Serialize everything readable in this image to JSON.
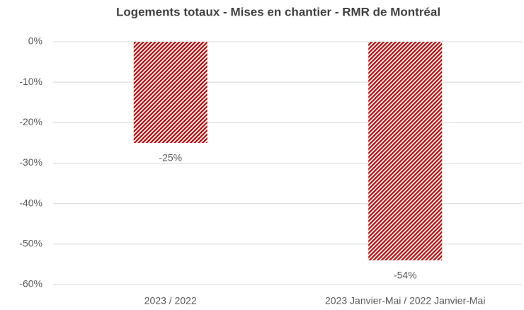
{
  "chart_data": {
    "type": "bar",
    "title": "Logements totaux - Mises en chantier - RMR de Montréal",
    "categories": [
      "2023 / 2022",
      "2023 Janvier-Mai / 2022 Janvier-Mai"
    ],
    "values": [
      -25,
      -54
    ],
    "value_labels": [
      "-25%",
      "-54%"
    ],
    "color": "#c00000",
    "ylim": [
      -60,
      0
    ],
    "yticks": [
      {
        "value": 0,
        "label": "0%"
      },
      {
        "value": -10,
        "label": "-10%"
      },
      {
        "value": -20,
        "label": "-20%"
      },
      {
        "value": -30,
        "label": "-30%"
      },
      {
        "value": -40,
        "label": "-40%"
      },
      {
        "value": -50,
        "label": "-50%"
      },
      {
        "value": -60,
        "label": "-60%"
      }
    ],
    "grid": true
  }
}
